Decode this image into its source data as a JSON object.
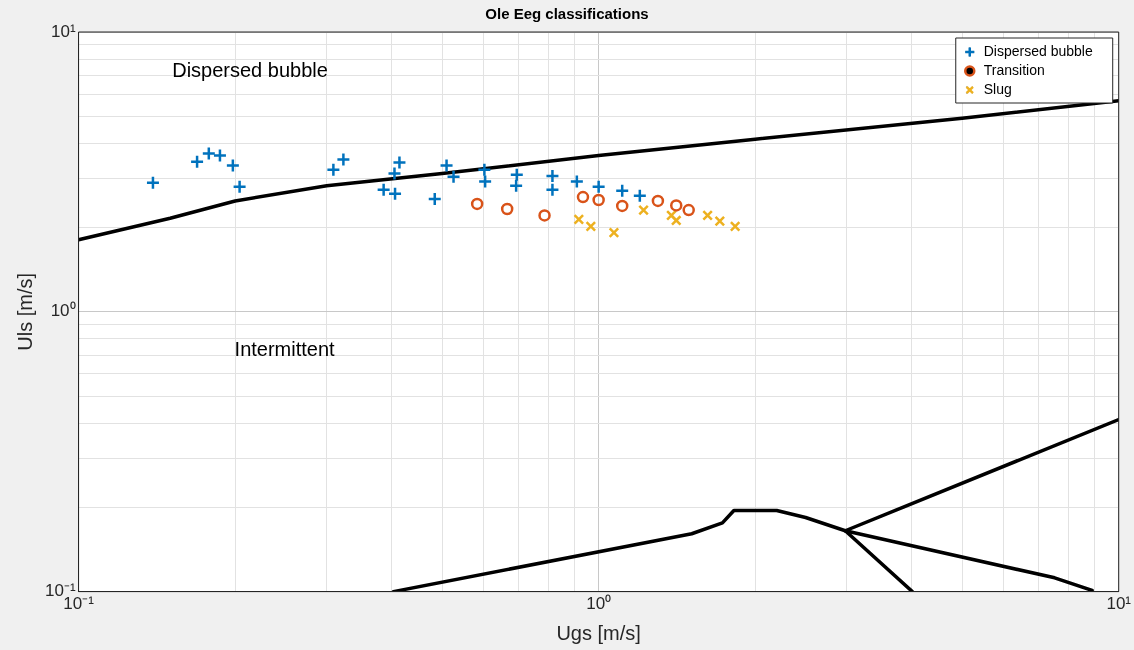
{
  "chart_data": {
    "type": "scatter",
    "title": "Ole Eeg classifications",
    "xlabel": "Ugs [m/s]",
    "ylabel": "Uls [m/s]",
    "log": "xy",
    "grid": true,
    "legend": "top right",
    "xlim": [
      0.1,
      10
    ],
    "ylim": [
      0.1,
      10
    ],
    "xticks": [
      {
        "value": 0.1,
        "label": "10⁻¹"
      },
      {
        "value": 0.2,
        "label": null
      },
      {
        "value": 0.3,
        "label": null
      },
      {
        "value": 0.4,
        "label": null
      },
      {
        "value": 0.5,
        "label": null
      },
      {
        "value": 0.6,
        "label": null
      },
      {
        "value": 0.7,
        "label": null
      },
      {
        "value": 0.8,
        "label": null
      },
      {
        "value": 0.9,
        "label": null
      },
      {
        "value": 1,
        "label": "10⁰"
      },
      {
        "value": 2,
        "label": null
      },
      {
        "value": 3,
        "label": null
      },
      {
        "value": 4,
        "label": null
      },
      {
        "value": 5,
        "label": null
      },
      {
        "value": 6,
        "label": null
      },
      {
        "value": 7,
        "label": null
      },
      {
        "value": 8,
        "label": null
      },
      {
        "value": 9,
        "label": null
      },
      {
        "value": 10,
        "label": "10¹"
      }
    ],
    "yticks": [
      {
        "value": 0.1,
        "label": "10⁻¹"
      },
      {
        "value": 0.2,
        "label": null
      },
      {
        "value": 0.3,
        "label": null
      },
      {
        "value": 0.4,
        "label": null
      },
      {
        "value": 0.5,
        "label": null
      },
      {
        "value": 0.6,
        "label": null
      },
      {
        "value": 0.7,
        "label": null
      },
      {
        "value": 0.8,
        "label": null
      },
      {
        "value": 0.9,
        "label": null
      },
      {
        "value": 1,
        "label": "10⁰"
      },
      {
        "value": 2,
        "label": null
      },
      {
        "value": 3,
        "label": null
      },
      {
        "value": 4,
        "label": null
      },
      {
        "value": 5,
        "label": null
      },
      {
        "value": 6,
        "label": null
      },
      {
        "value": 7,
        "label": null
      },
      {
        "value": 8,
        "label": null
      },
      {
        "value": 9,
        "label": null
      },
      {
        "value": 10,
        "label": "10¹"
      }
    ],
    "annotations": [
      "Dispersed bubble",
      "Intermittent"
    ],
    "series": [
      {
        "name": "Dispersed bubble",
        "type": "scatter",
        "marker": "cross",
        "color": "#0072bd",
        "x": [
          0.139,
          0.169,
          0.178,
          0.187,
          0.198,
          0.204,
          0.309,
          0.323,
          0.386,
          0.405,
          0.406,
          0.414,
          0.484,
          0.51,
          0.526,
          0.603,
          0.605,
          0.696,
          0.694,
          0.815,
          0.815,
          0.908,
          1.0,
          1.11,
          1.2
        ],
        "values": [
          2.89,
          3.44,
          3.68,
          3.62,
          3.33,
          2.8,
          3.22,
          3.5,
          2.73,
          3.12,
          2.64,
          3.42,
          2.53,
          3.33,
          3.04,
          3.22,
          2.92,
          3.09,
          2.82,
          3.06,
          2.73,
          2.92,
          2.8,
          2.71,
          2.6
        ]
      },
      {
        "name": "Transition",
        "type": "scatter",
        "marker": "circle",
        "color": "#d95319",
        "x": [
          0.584,
          0.667,
          0.787,
          0.933,
          1.0,
          1.11,
          1.3,
          1.41,
          1.49
        ],
        "values": [
          2.43,
          2.33,
          2.21,
          2.57,
          2.51,
          2.39,
          2.49,
          2.4,
          2.31
        ]
      },
      {
        "name": "Slug",
        "type": "scatter",
        "marker": "x",
        "color": "#edb120",
        "x": [
          0.916,
          0.966,
          1.07,
          1.22,
          1.38,
          1.41,
          1.62,
          1.71,
          1.83
        ],
        "values": [
          2.14,
          2.02,
          1.92,
          2.31,
          2.21,
          2.12,
          2.21,
          2.11,
          2.02
        ]
      },
      {
        "type": "line",
        "marker": "none",
        "color": "#000000",
        "x": [
          0.1,
          0.15,
          0.2,
          0.3,
          0.5,
          1,
          2,
          5,
          10
        ],
        "values": [
          1.81,
          2.16,
          2.49,
          2.82,
          3.12,
          3.62,
          4.14,
          4.92,
          5.68
        ]
      },
      {
        "type": "line",
        "marker": "none",
        "color": "#000000",
        "x": [
          0.403,
          1.51,
          1.73,
          1.82,
          2.2,
          2.5,
          2.98,
          10
        ],
        "values": [
          0.1,
          0.161,
          0.176,
          0.195,
          0.195,
          0.184,
          0.165,
          0.412
        ]
      },
      {
        "type": "line",
        "marker": "none",
        "color": "#000000",
        "x": [
          2.98,
          4.01
        ],
        "values": [
          0.165,
          0.1
        ]
      },
      {
        "type": "line",
        "marker": "none",
        "color": "#000000",
        "x": [
          2.98,
          7.53,
          8.89
        ],
        "values": [
          0.165,
          0.112,
          0.101
        ]
      }
    ]
  }
}
